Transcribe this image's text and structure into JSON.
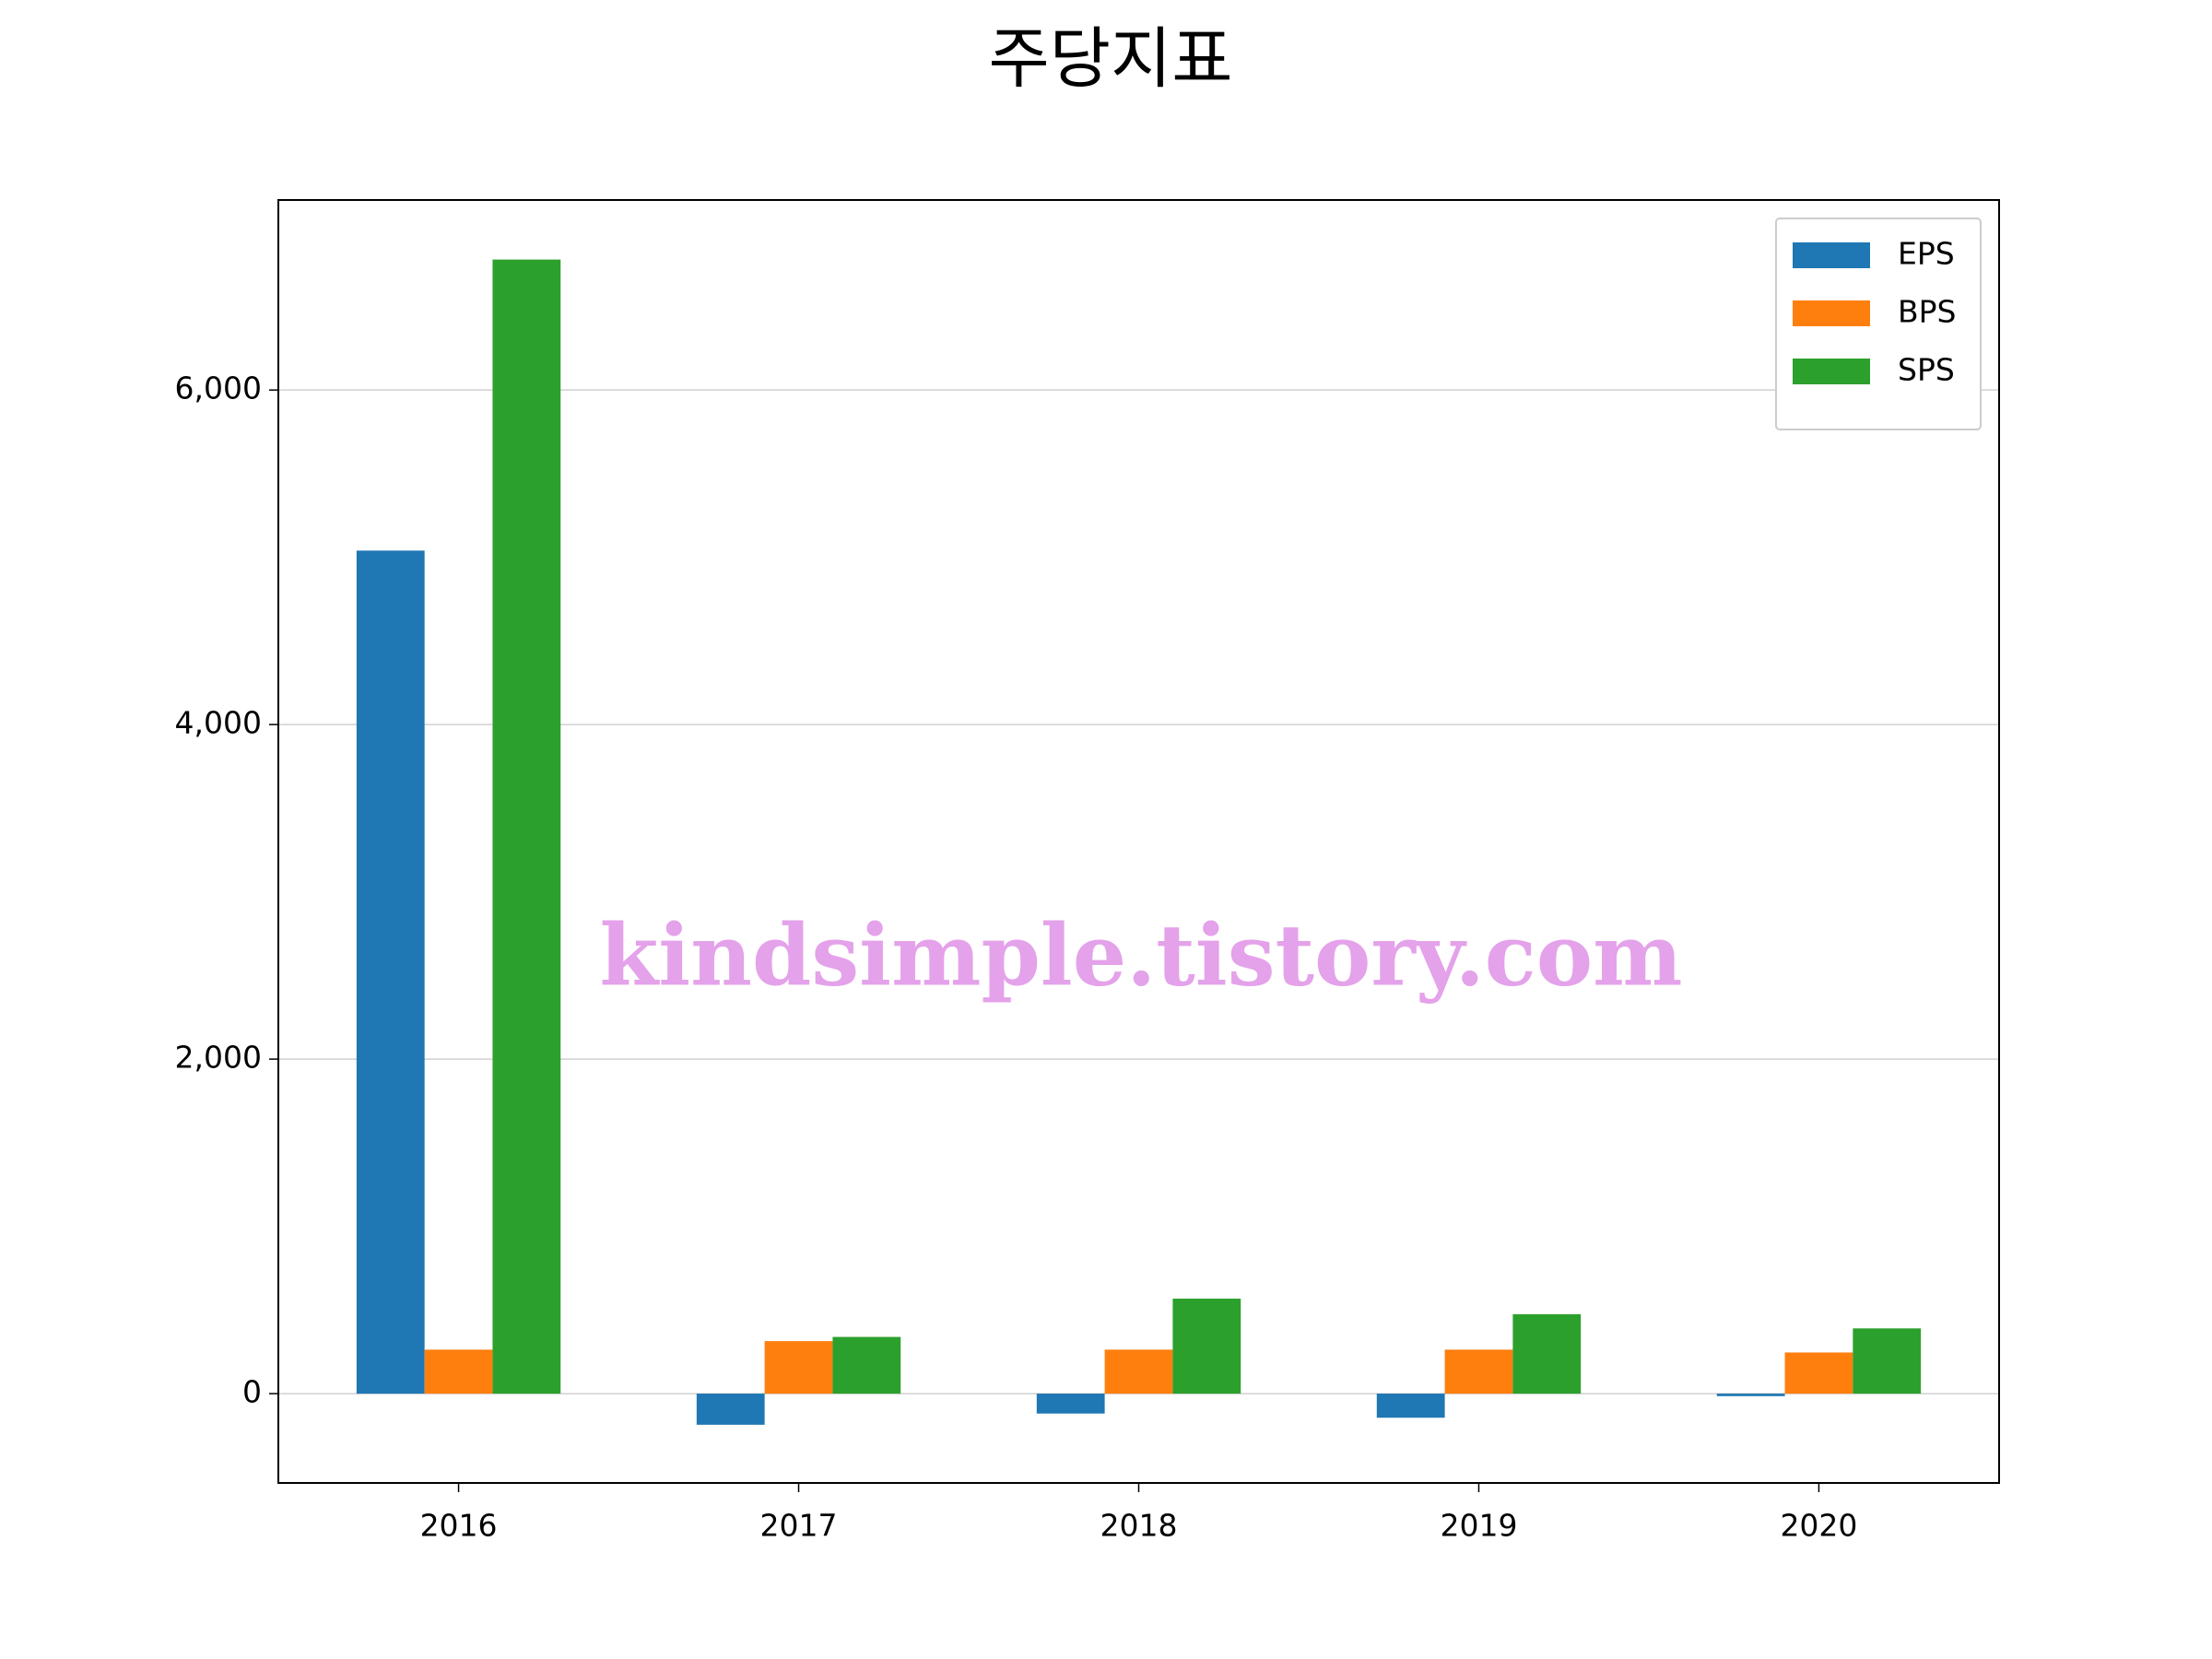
{
  "chart_data": {
    "type": "bar",
    "title": "주당지표",
    "categories": [
      "2016",
      "2017",
      "2018",
      "2019",
      "2020"
    ],
    "series": [
      {
        "name": "EPS",
        "color": "#1f77b4",
        "values": [
          5040,
          -186,
          -119,
          -144,
          -15
        ]
      },
      {
        "name": "BPS",
        "color": "#ff7f0e",
        "values": [
          263,
          314,
          263,
          263,
          246
        ]
      },
      {
        "name": "SPS",
        "color": "#2ca02c",
        "values": [
          6780,
          339,
          568,
          475,
          390
        ]
      }
    ],
    "ylim": [
      -534,
      7136
    ],
    "yticks": [
      0,
      {
        "value": 2000,
        "label": "2,000"
      },
      {
        "value": 4000,
        "label": "4,000"
      },
      {
        "value": 6000,
        "label": "6,000"
      }
    ],
    "grid": true,
    "legend": "upper right",
    "watermark": "kindsimple.tistory.com"
  }
}
